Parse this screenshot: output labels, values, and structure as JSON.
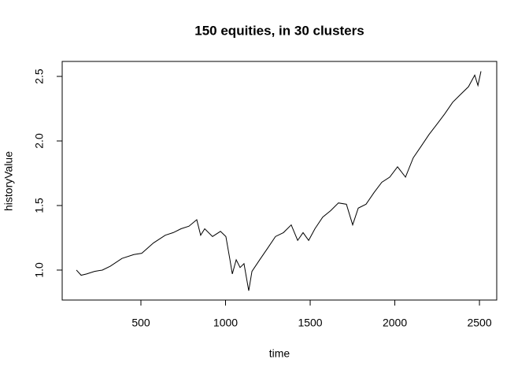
{
  "chart_data": {
    "type": "line",
    "title": "150 equities, in 30 clusters",
    "x_label": "time",
    "y_label": "historyValue",
    "x": [
      119,
      147,
      179,
      226,
      272,
      319,
      388,
      458,
      505,
      574,
      644,
      691,
      737,
      784,
      830,
      853,
      877,
      923,
      970,
      1002,
      1026,
      1040,
      1063,
      1086,
      1109,
      1137,
      1156,
      1202,
      1249,
      1295,
      1342,
      1388,
      1426,
      1458,
      1491,
      1528,
      1574,
      1621,
      1667,
      1714,
      1751,
      1784,
      1830,
      1877,
      1923,
      1970,
      2016,
      2063,
      2109,
      2156,
      2202,
      2249,
      2295,
      2342,
      2388,
      2435,
      2472,
      2491,
      2509
    ],
    "series": [
      {
        "name": "historyValue",
        "color": "#000000",
        "values": [
          1.0,
          0.96,
          0.97,
          0.99,
          1.0,
          1.03,
          1.09,
          1.12,
          1.13,
          1.21,
          1.27,
          1.29,
          1.32,
          1.34,
          1.39,
          1.27,
          1.32,
          1.26,
          1.3,
          1.26,
          1.08,
          0.97,
          1.08,
          1.02,
          1.05,
          0.84,
          0.99,
          1.08,
          1.17,
          1.26,
          1.29,
          1.35,
          1.23,
          1.29,
          1.23,
          1.32,
          1.41,
          1.46,
          1.52,
          1.51,
          1.35,
          1.48,
          1.51,
          1.6,
          1.68,
          1.72,
          1.8,
          1.72,
          1.87,
          1.96,
          2.05,
          2.13,
          2.21,
          2.3,
          2.36,
          2.42,
          2.51,
          2.43,
          2.54
        ]
      }
    ],
    "xlim": [
      35,
      2602
    ],
    "ylim": [
      0.768,
      2.616
    ],
    "xticks": [
      500,
      1000,
      1500,
      2000,
      2500
    ],
    "yticks": [
      {
        "value": 1,
        "label": "1.0"
      },
      1.5,
      {
        "value": 2,
        "label": "2.0"
      },
      2.5
    ]
  }
}
